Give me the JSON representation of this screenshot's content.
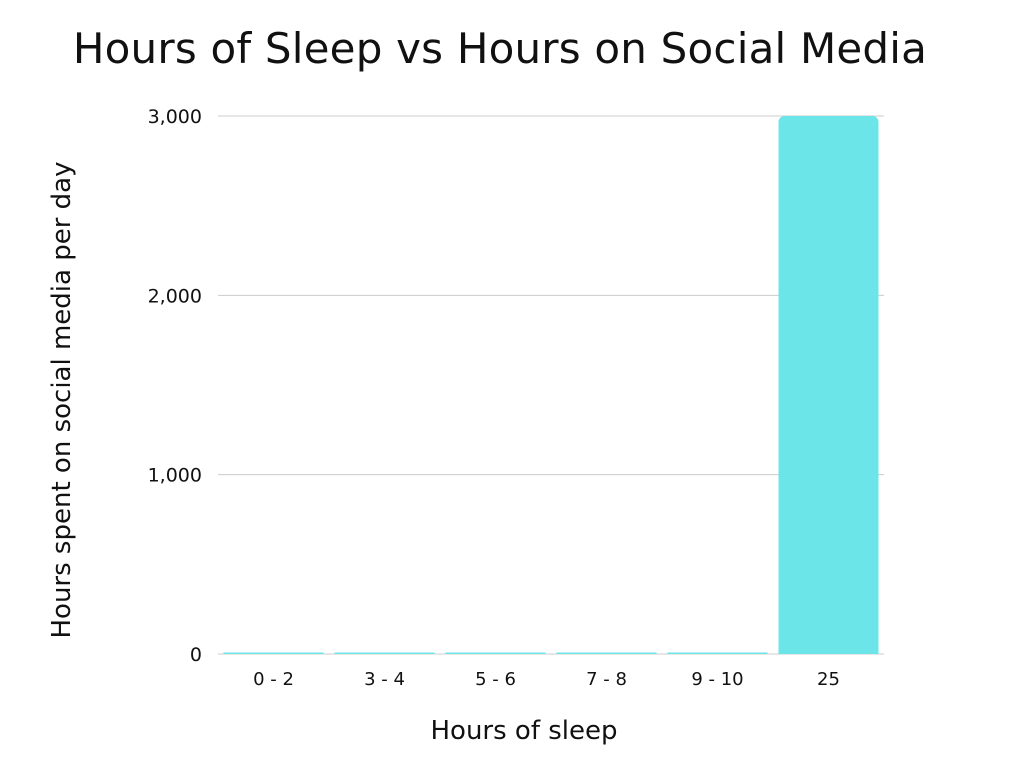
{
  "chart_data": {
    "type": "bar",
    "title": "Hours of Sleep vs Hours on Social Media",
    "xlabel": "Hours of sleep",
    "ylabel": "Hours spent on social media per day",
    "categories": [
      "0 - 2",
      "3 - 4",
      "5 - 6",
      "7 - 8",
      "9 - 10",
      "25"
    ],
    "values": [
      0,
      0,
      0,
      0,
      0,
      3000
    ],
    "ylim": [
      0,
      3000
    ],
    "yticks": [
      0,
      1000,
      2000,
      3000
    ],
    "ytick_labels": [
      "0",
      "1,000",
      "2,000",
      "3,000"
    ],
    "grid": true,
    "legend": "none",
    "bar_color": "#6be5e8",
    "grid_color": "#cccccc"
  }
}
